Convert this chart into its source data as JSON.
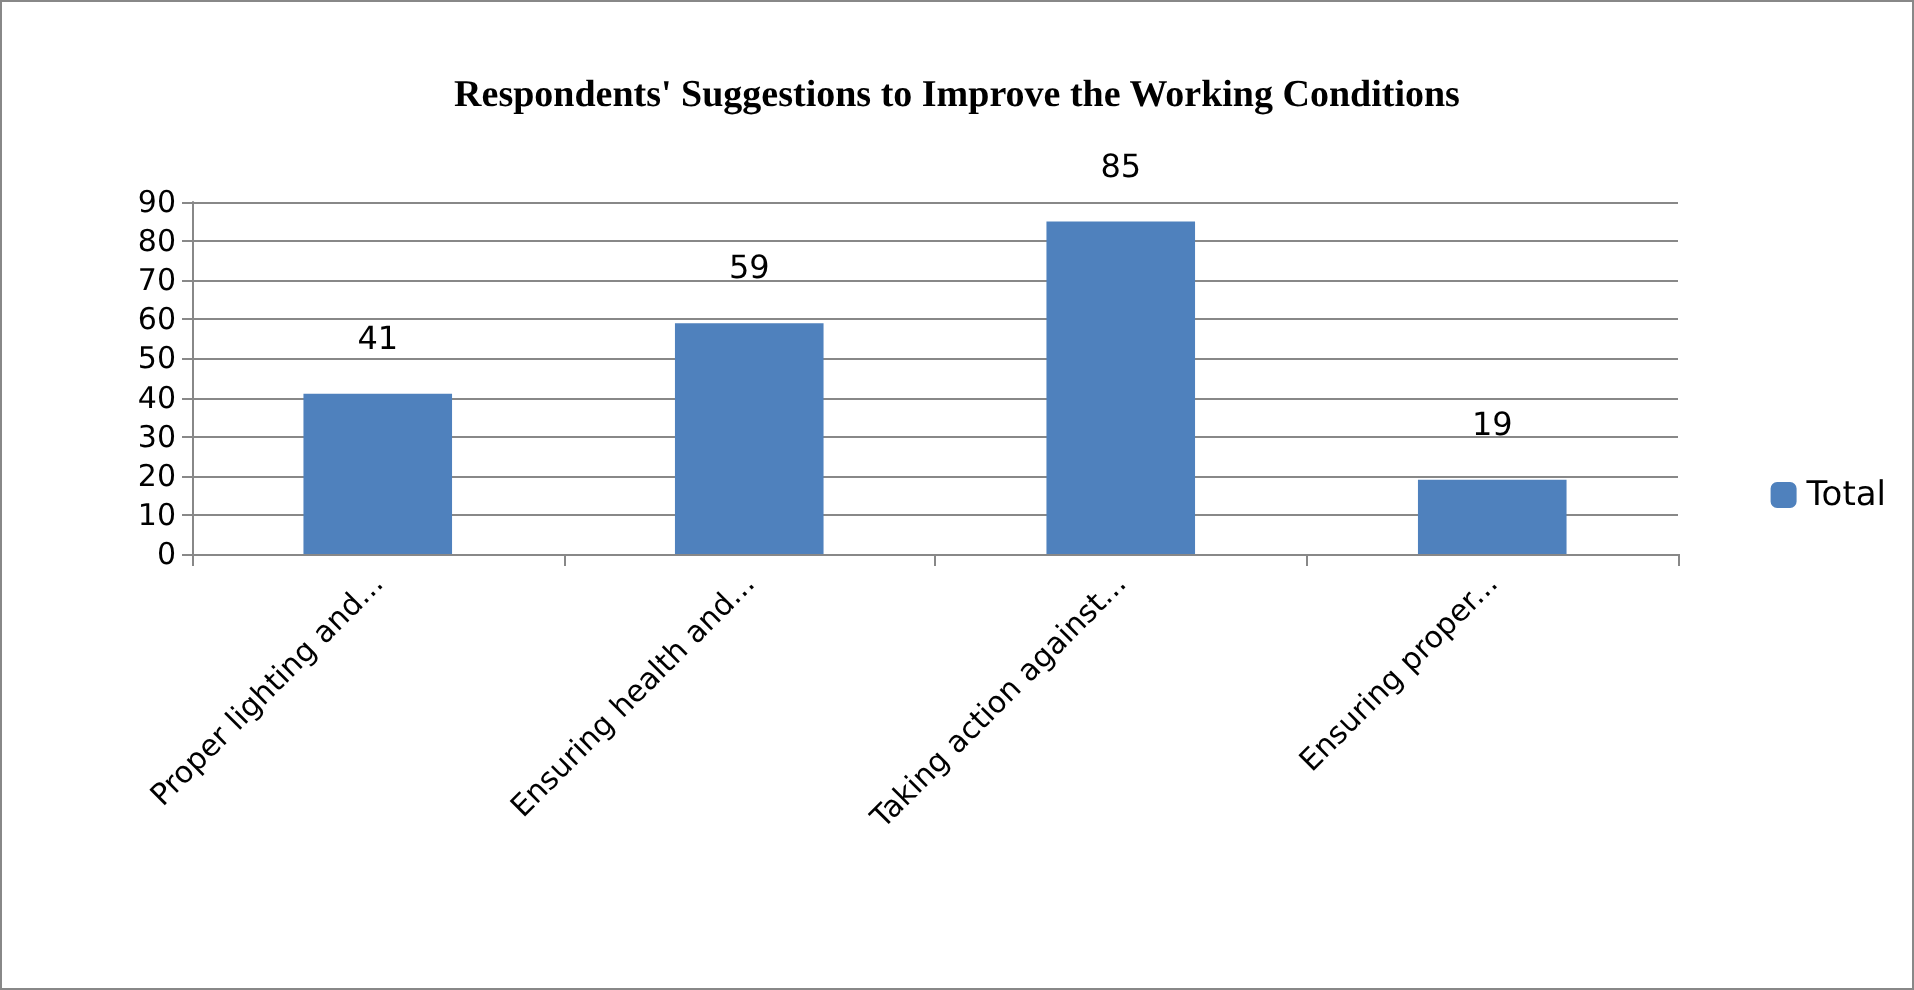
{
  "chart_data": {
    "type": "bar",
    "title": "Respondents' Suggestions to Improve the Working Conditions",
    "categories": [
      "Proper lighting and...",
      "Ensuring health and...",
      "Taking action against...",
      "Ensuring proper..."
    ],
    "series": [
      {
        "name": "Total",
        "color": "#4f81bd",
        "values": [
          41,
          59,
          85,
          19
        ]
      }
    ],
    "ylim": [
      0,
      90
    ],
    "yticks": [
      0,
      10,
      20,
      30,
      40,
      50,
      60,
      70,
      80,
      90
    ],
    "grid": "y",
    "legend": "right",
    "data_labels": true
  }
}
